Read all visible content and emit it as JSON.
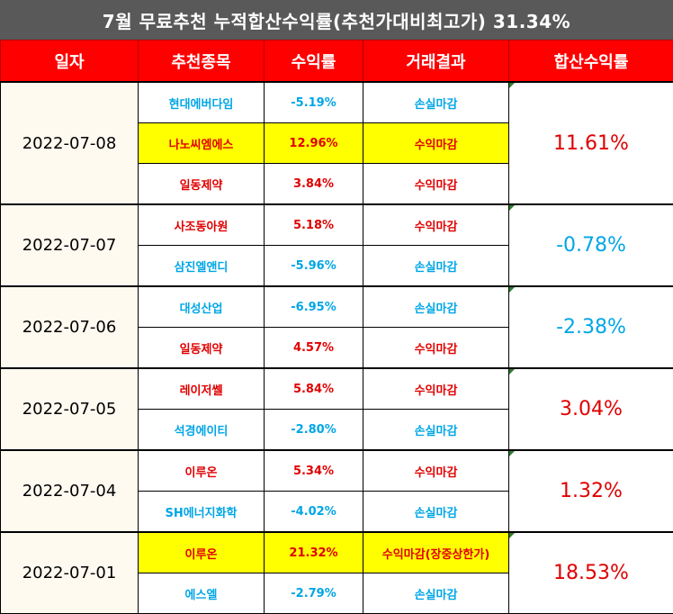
{
  "title": "7월 무료추천 누적합산수익률(추천가대비최고가) 31.34%",
  "headers": [
    "일자",
    "추천종목",
    "수익률",
    "거래결과",
    "합산수익률"
  ],
  "groups": [
    {
      "date": "2022-07-08",
      "total": "11.61%",
      "total_color": "red",
      "rows": [
        {
          "stock": "현대에버다임",
          "ret": "-5.19%",
          "result": "손실마감",
          "color": "blue",
          "highlight": false
        },
        {
          "stock": "나노씨엠에스",
          "ret": "12.96%",
          "result": "수익마감",
          "color": "red",
          "highlight": true
        },
        {
          "stock": "일동제약",
          "ret": "3.84%",
          "result": "수익마감",
          "color": "red",
          "highlight": false
        }
      ]
    },
    {
      "date": "2022-07-07",
      "total": "-0.78%",
      "total_color": "blue",
      "rows": [
        {
          "stock": "사조동아원",
          "ret": "5.18%",
          "result": "수익마감",
          "color": "red",
          "highlight": false
        },
        {
          "stock": "삼진엘앤디",
          "ret": "-5.96%",
          "result": "손실마감",
          "color": "blue",
          "highlight": false
        }
      ]
    },
    {
      "date": "2022-07-06",
      "total": "-2.38%",
      "total_color": "blue",
      "rows": [
        {
          "stock": "대성산업",
          "ret": "-6.95%",
          "result": "손실마감",
          "color": "blue",
          "highlight": false
        },
        {
          "stock": "일동제약",
          "ret": "4.57%",
          "result": "수익마감",
          "color": "red",
          "highlight": false
        }
      ]
    },
    {
      "date": "2022-07-05",
      "total": "3.04%",
      "total_color": "red",
      "rows": [
        {
          "stock": "레이저쎌",
          "ret": "5.84%",
          "result": "수익마감",
          "color": "red",
          "highlight": false
        },
        {
          "stock": "석경에이티",
          "ret": "-2.80%",
          "result": "손실마감",
          "color": "blue",
          "highlight": false
        }
      ]
    },
    {
      "date": "2022-07-04",
      "total": "1.32%",
      "total_color": "red",
      "rows": [
        {
          "stock": "이루온",
          "ret": "5.34%",
          "result": "수익마감",
          "color": "red",
          "highlight": false
        },
        {
          "stock": "SH에너지화학",
          "ret": "-4.02%",
          "result": "손실마감",
          "color": "blue",
          "highlight": false
        }
      ]
    },
    {
      "date": "2022-07-01",
      "total": "18.53%",
      "total_color": "red",
      "rows": [
        {
          "stock": "이루온",
          "ret": "21.32%",
          "result": "수익마감(장중상한가)",
          "color": "red",
          "highlight": true
        },
        {
          "stock": "에스엘",
          "ret": "-2.79%",
          "result": "손실마감",
          "color": "blue",
          "highlight": false
        }
      ]
    }
  ]
}
